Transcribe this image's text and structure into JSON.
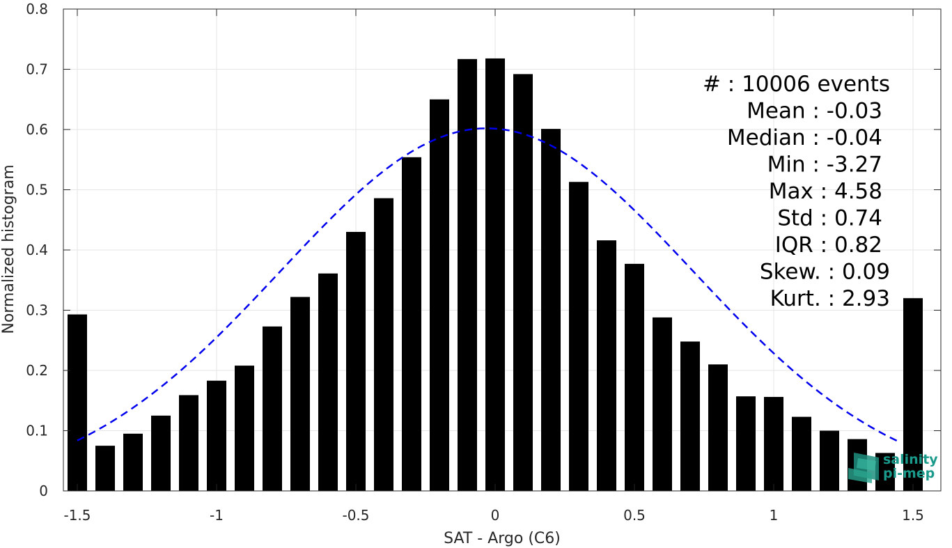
{
  "chart_data": {
    "type": "bar",
    "xlabel": "SAT - Argo (C6)",
    "ylabel": "Normalized histogram",
    "xlim": [
      -1.55,
      1.6
    ],
    "ylim": [
      0,
      0.8
    ],
    "grid": true,
    "x": [
      -1.5,
      -1.4,
      -1.3,
      -1.2,
      -1.1,
      -1.0,
      -0.9,
      -0.8,
      -0.7,
      -0.6,
      -0.5,
      -0.4,
      -0.3,
      -0.2,
      -0.1,
      0.0,
      0.1,
      0.2,
      0.3,
      0.4,
      0.5,
      0.6,
      0.7,
      0.8,
      0.9,
      1.0,
      1.1,
      1.2,
      1.3,
      1.4,
      1.5
    ],
    "values": [
      0.293,
      0.075,
      0.095,
      0.125,
      0.159,
      0.183,
      0.208,
      0.273,
      0.322,
      0.361,
      0.43,
      0.486,
      0.554,
      0.65,
      0.717,
      0.718,
      0.692,
      0.601,
      0.513,
      0.416,
      0.377,
      0.288,
      0.248,
      0.21,
      0.157,
      0.156,
      0.123,
      0.1,
      0.086,
      0.063,
      0.32
    ],
    "bar_color": "#000000",
    "fit_curve": {
      "type": "gaussian",
      "mean": -0.03,
      "std": 0.74,
      "peak": 0.602,
      "x_range": [
        -1.5,
        1.45
      ],
      "color": "#0000ee",
      "style": "dashed"
    },
    "x_ticks": [
      "-1.5",
      "-1",
      "-0.5",
      "0",
      "0.5",
      "1",
      "1.5"
    ],
    "x_tick_values": [
      -1.5,
      -1.0,
      -0.5,
      0.0,
      0.5,
      1.0,
      1.5
    ],
    "y_ticks": [
      "0",
      "0.1",
      "0.2",
      "0.3",
      "0.4",
      "0.5",
      "0.6",
      "0.7",
      "0.8"
    ],
    "y_tick_values": [
      0,
      0.1,
      0.2,
      0.3,
      0.4,
      0.5,
      0.6,
      0.7,
      0.8
    ]
  },
  "stats": [
    "#  : 10006 events",
    "Mean : -0.03",
    "Median : -0.04",
    "Min : -3.27",
    "Max : 4.58",
    "Std : 0.74",
    "IQR : 0.82",
    "Skew. : 0.09",
    "Kurt. : 2.93"
  ],
  "logo": {
    "line1": "salinity",
    "line2": "pi-mep",
    "color": "#1a9a8a"
  }
}
